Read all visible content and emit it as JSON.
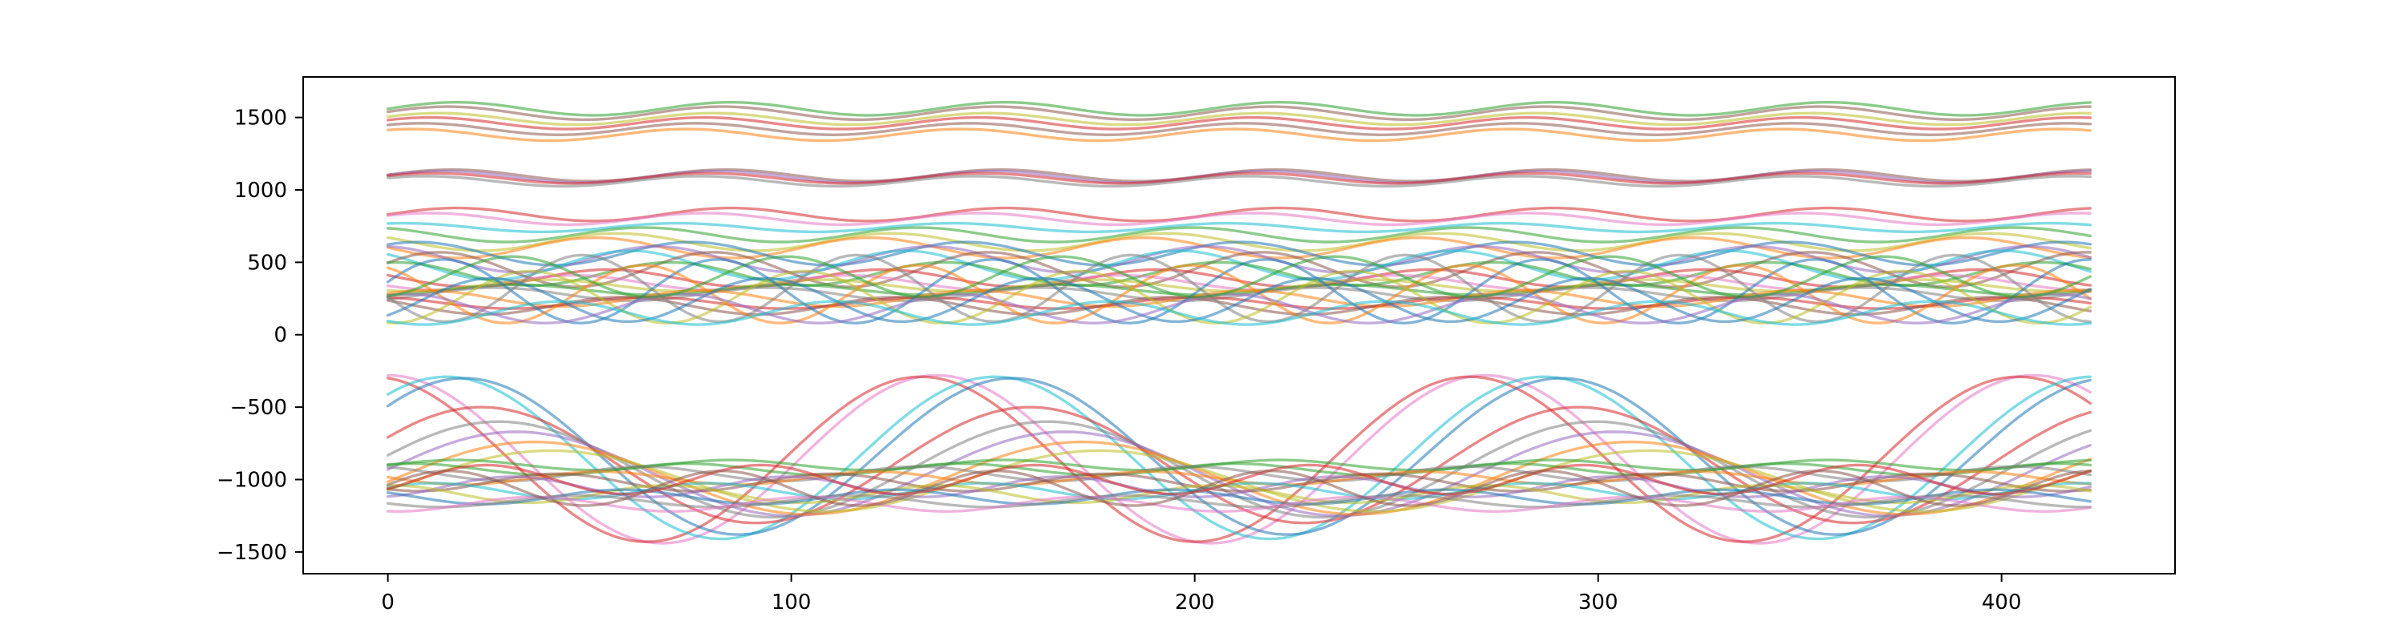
{
  "chart_data": {
    "type": "line",
    "title": "",
    "xlabel": "",
    "ylabel": "",
    "xlim": [
      -21,
      443
    ],
    "ylim": [
      -1650,
      1780
    ],
    "x_range": [
      0,
      422
    ],
    "xticks": [
      0,
      100,
      200,
      300,
      400
    ],
    "xtick_labels": [
      "0",
      "100",
      "200",
      "300",
      "400"
    ],
    "yticks": [
      -1500,
      -1000,
      -500,
      0,
      500,
      1000,
      1500
    ],
    "ytick_labels": [
      "−1500",
      "−1000",
      "−500",
      "0",
      "500",
      "1000",
      "1500"
    ],
    "grid": false,
    "legend": "none",
    "line_alpha": 0.55,
    "palette": [
      "#1f77b4",
      "#ff7f0e",
      "#2ca02c",
      "#d62728",
      "#9467bd",
      "#8c564b",
      "#e377c2",
      "#7f7f7f",
      "#bcbd22",
      "#17becf"
    ],
    "series": [
      {
        "baseline": 1560,
        "amplitude": 45,
        "period": 68,
        "phase": 0.0,
        "color": "#2ca02c"
      },
      {
        "baseline": 1530,
        "amplitude": 45,
        "period": 68,
        "phase": 0.2,
        "color": "#8c564b"
      },
      {
        "baseline": 1490,
        "amplitude": 40,
        "period": 68,
        "phase": 0.4,
        "color": "#bcbd22"
      },
      {
        "baseline": 1460,
        "amplitude": 40,
        "period": 68,
        "phase": 0.6,
        "color": "#d62728"
      },
      {
        "baseline": 1420,
        "amplitude": 40,
        "period": 68,
        "phase": 0.8,
        "color": "#8c564b"
      },
      {
        "baseline": 1380,
        "amplitude": 40,
        "period": 68,
        "phase": 1.0,
        "color": "#ff7f0e"
      },
      {
        "baseline": 1100,
        "amplitude": 40,
        "period": 68,
        "phase": 0.1,
        "color": "#8c564b"
      },
      {
        "baseline": 1090,
        "amplitude": 40,
        "period": 68,
        "phase": 0.3,
        "color": "#9467bd"
      },
      {
        "baseline": 1080,
        "amplitude": 35,
        "period": 68,
        "phase": 0.5,
        "color": "#d62728"
      },
      {
        "baseline": 1060,
        "amplitude": 35,
        "period": 68,
        "phase": 0.7,
        "color": "#7f7f7f"
      },
      {
        "baseline": 830,
        "amplitude": 45,
        "period": 68,
        "phase": 0.0,
        "color": "#d62728"
      },
      {
        "baseline": 800,
        "amplitude": 40,
        "period": 68,
        "phase": 0.6,
        "color": "#e377c2"
      },
      {
        "baseline": 740,
        "amplitude": 30,
        "period": 68,
        "phase": 1.2,
        "color": "#17becf"
      },
      {
        "baseline": 690,
        "amplitude": 50,
        "period": 68,
        "phase": 2.0,
        "color": "#2ca02c"
      },
      {
        "baseline": 640,
        "amplitude": 60,
        "period": 68,
        "phase": 2.6,
        "color": "#bcbd22"
      },
      {
        "baseline": 600,
        "amplitude": 70,
        "period": 68,
        "phase": 3.1,
        "color": "#ff7f0e"
      },
      {
        "baseline": 560,
        "amplitude": 80,
        "period": 68,
        "phase": 0.9,
        "color": "#1f77b4"
      },
      {
        "baseline": 520,
        "amplitude": 90,
        "period": 68,
        "phase": 1.7,
        "color": "#9467bd"
      },
      {
        "baseline": 480,
        "amplitude": 100,
        "period": 68,
        "phase": 2.3,
        "color": "#17becf"
      },
      {
        "baseline": 450,
        "amplitude": 120,
        "period": 68,
        "phase": 0.4,
        "color": "#8c564b"
      },
      {
        "baseline": 420,
        "amplitude": 80,
        "period": 68,
        "phase": 1.4,
        "color": "#2ca02c"
      },
      {
        "baseline": 390,
        "amplitude": 60,
        "period": 68,
        "phase": 2.8,
        "color": "#d62728"
      },
      {
        "baseline": 360,
        "amplitude": 50,
        "period": 68,
        "phase": 3.6,
        "color": "#e377c2"
      },
      {
        "baseline": 340,
        "amplitude": 40,
        "period": 68,
        "phase": 4.2,
        "color": "#bcbd22"
      },
      {
        "baseline": 310,
        "amplitude": 35,
        "period": 68,
        "phase": 4.9,
        "color": "#2ca02c"
      },
      {
        "baseline": 280,
        "amplitude": 45,
        "period": 68,
        "phase": 5.4,
        "color": "#7f7f7f"
      },
      {
        "baseline": 250,
        "amplitude": 55,
        "period": 68,
        "phase": 0.7,
        "color": "#ff7f0e"
      },
      {
        "baseline": 220,
        "amplitude": 40,
        "period": 68,
        "phase": 1.9,
        "color": "#d62728"
      },
      {
        "baseline": 200,
        "amplitude": 60,
        "period": 68,
        "phase": 2.5,
        "color": "#8c564b"
      },
      {
        "baseline": 300,
        "amplitude": 220,
        "period": 68,
        "phase": 0.3,
        "color": "#1f77b4"
      },
      {
        "baseline": 280,
        "amplitude": 200,
        "period": 68,
        "phase": 2.0,
        "color": "#ff7f0e"
      },
      {
        "baseline": 320,
        "amplitude": 230,
        "period": 68,
        "phase": 3.4,
        "color": "#7f7f7f"
      },
      {
        "baseline": 260,
        "amplitude": 180,
        "period": 68,
        "phase": 4.6,
        "color": "#bcbd22"
      },
      {
        "baseline": 240,
        "amplitude": 150,
        "period": 68,
        "phase": 5.5,
        "color": "#1f77b4"
      },
      {
        "baseline": 180,
        "amplitude": 100,
        "period": 68,
        "phase": 1.1,
        "color": "#9467bd"
      },
      {
        "baseline": 150,
        "amplitude": 80,
        "period": 68,
        "phase": 3.9,
        "color": "#17becf"
      },
      {
        "baseline": 400,
        "amplitude": 140,
        "period": 68,
        "phase": 5.0,
        "color": "#2ca02c"
      },
      {
        "baseline": -860,
        "amplitude": 580,
        "period": 136,
        "phase": 1.57,
        "color": "#e377c2"
      },
      {
        "baseline": -860,
        "amplitude": 570,
        "period": 136,
        "phase": 1.75,
        "color": "#d62728"
      },
      {
        "baseline": -850,
        "amplitude": 560,
        "period": 136,
        "phase": 0.9,
        "color": "#17becf"
      },
      {
        "baseline": -840,
        "amplitude": 540,
        "period": 136,
        "phase": 0.7,
        "color": "#1f77b4"
      },
      {
        "baseline": -900,
        "amplitude": 400,
        "period": 136,
        "phase": 0.5,
        "color": "#d62728"
      },
      {
        "baseline": -930,
        "amplitude": 330,
        "period": 136,
        "phase": 0.3,
        "color": "#7f7f7f"
      },
      {
        "baseline": -960,
        "amplitude": 290,
        "period": 136,
        "phase": 0.1,
        "color": "#9467bd"
      },
      {
        "baseline": -990,
        "amplitude": 250,
        "period": 136,
        "phase": -0.1,
        "color": "#ff7f0e"
      },
      {
        "baseline": -1010,
        "amplitude": 210,
        "period": 136,
        "phase": -0.3,
        "color": "#bcbd22"
      },
      {
        "baseline": -900,
        "amplitude": 35,
        "period": 68,
        "phase": 0.0,
        "color": "#2ca02c"
      },
      {
        "baseline": -930,
        "amplitude": 40,
        "period": 68,
        "phase": 1.0,
        "color": "#2ca02c"
      },
      {
        "baseline": -960,
        "amplitude": 50,
        "period": 68,
        "phase": 2.0,
        "color": "#7f7f7f"
      },
      {
        "baseline": -990,
        "amplitude": 45,
        "period": 68,
        "phase": 3.0,
        "color": "#ff7f0e"
      },
      {
        "baseline": -1020,
        "amplitude": 60,
        "period": 68,
        "phase": 4.0,
        "color": "#8c564b"
      },
      {
        "baseline": -1050,
        "amplitude": 70,
        "period": 68,
        "phase": 5.0,
        "color": "#9467bd"
      },
      {
        "baseline": -1080,
        "amplitude": 55,
        "period": 68,
        "phase": 0.5,
        "color": "#17becf"
      },
      {
        "baseline": -1100,
        "amplitude": 60,
        "period": 68,
        "phase": 1.5,
        "color": "#bcbd22"
      },
      {
        "baseline": -1120,
        "amplitude": 50,
        "period": 68,
        "phase": 2.5,
        "color": "#1f77b4"
      },
      {
        "baseline": -1150,
        "amplitude": 40,
        "period": 68,
        "phase": 3.5,
        "color": "#7f7f7f"
      },
      {
        "baseline": -1170,
        "amplitude": 50,
        "period": 68,
        "phase": 4.5,
        "color": "#e377c2"
      },
      {
        "baseline": -1000,
        "amplitude": 100,
        "period": 68,
        "phase": 5.6,
        "color": "#d62728"
      },
      {
        "baseline": -1060,
        "amplitude": 120,
        "period": 68,
        "phase": 0.2,
        "color": "#8c564b"
      }
    ]
  }
}
